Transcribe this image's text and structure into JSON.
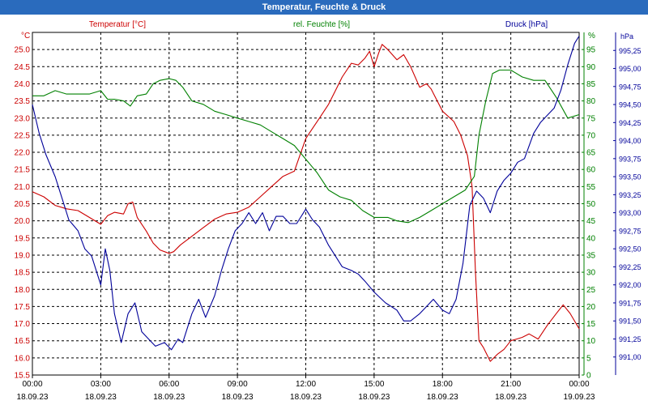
{
  "window": {
    "title": "Temperatur, Feuchte & Druck"
  },
  "chart_data": {
    "type": "line",
    "title": "Temperatur, Feuchte & Druck",
    "grid": true,
    "x_ticks": [
      {
        "time": "00:00",
        "date": "18.09.23"
      },
      {
        "time": "03:00",
        "date": "18.09.23"
      },
      {
        "time": "06:00",
        "date": "18.09.23"
      },
      {
        "time": "09:00",
        "date": "18.09.23"
      },
      {
        "time": "12:00",
        "date": "18.09.23"
      },
      {
        "time": "15:00",
        "date": "18.09.23"
      },
      {
        "time": "18:00",
        "date": "18.09.23"
      },
      {
        "time": "21:00",
        "date": "18.09.23"
      },
      {
        "time": "00:00",
        "date": "19.09.23"
      }
    ],
    "x_range_hours": [
      0,
      24
    ],
    "axes": {
      "temperature": {
        "unit_label": "°C",
        "range": [
          15.5,
          25.5
        ],
        "color": "#cc0000",
        "ticks": [
          "15.5",
          "16.0",
          "16.5",
          "17.0",
          "17.5",
          "18.0",
          "18.5",
          "19.0",
          "19.5",
          "20.0",
          "20.5",
          "21.0",
          "21.5",
          "22.0",
          "22.5",
          "23.0",
          "23.5",
          "24.0",
          "24.5",
          "25.0"
        ]
      },
      "humidity": {
        "unit_label": "%",
        "range": [
          0,
          100
        ],
        "color": "#008000",
        "ticks": [
          "0",
          "5",
          "10",
          "15",
          "20",
          "25",
          "30",
          "35",
          "40",
          "45",
          "50",
          "55",
          "60",
          "65",
          "70",
          "75",
          "80",
          "85",
          "90",
          "95"
        ]
      },
      "pressure": {
        "unit_label": "hPa",
        "range": [
          990.75,
          995.5
        ],
        "color": "#000099",
        "ticks": [
          "991,00",
          "991,25",
          "991,50",
          "991,75",
          "992,00",
          "992,25",
          "992,50",
          "992,75",
          "993,00",
          "993,25",
          "993,50",
          "993,75",
          "994,00",
          "994,25",
          "994,50",
          "994,75",
          "995,00",
          "995,25"
        ]
      }
    },
    "series": [
      {
        "name": "Temperatur [°C]",
        "axis": "temperature",
        "color": "#cc0000",
        "data": [
          [
            0,
            20.85
          ],
          [
            0.5,
            20.7
          ],
          [
            1,
            20.45
          ],
          [
            1.5,
            20.35
          ],
          [
            2,
            20.3
          ],
          [
            2.5,
            20.1
          ],
          [
            3,
            19.9
          ],
          [
            3.3,
            20.15
          ],
          [
            3.6,
            20.25
          ],
          [
            4,
            20.2
          ],
          [
            4.2,
            20.5
          ],
          [
            4.4,
            20.55
          ],
          [
            4.6,
            20.1
          ],
          [
            5,
            19.7
          ],
          [
            5.3,
            19.35
          ],
          [
            5.6,
            19.15
          ],
          [
            6,
            19.05
          ],
          [
            6.2,
            19.1
          ],
          [
            6.5,
            19.3
          ],
          [
            7,
            19.55
          ],
          [
            7.5,
            19.8
          ],
          [
            8,
            20.05
          ],
          [
            8.5,
            20.2
          ],
          [
            9,
            20.25
          ],
          [
            9.5,
            20.4
          ],
          [
            10,
            20.7
          ],
          [
            10.5,
            21.0
          ],
          [
            11,
            21.3
          ],
          [
            11.5,
            21.45
          ],
          [
            12,
            22.4
          ],
          [
            12.3,
            22.7
          ],
          [
            12.6,
            23.0
          ],
          [
            13,
            23.4
          ],
          [
            13.3,
            23.8
          ],
          [
            13.6,
            24.2
          ],
          [
            14,
            24.6
          ],
          [
            14.3,
            24.55
          ],
          [
            14.6,
            24.75
          ],
          [
            14.8,
            24.95
          ],
          [
            15,
            24.5
          ],
          [
            15.2,
            24.9
          ],
          [
            15.35,
            25.15
          ],
          [
            15.6,
            25.0
          ],
          [
            16,
            24.7
          ],
          [
            16.3,
            24.85
          ],
          [
            16.6,
            24.5
          ],
          [
            17,
            23.9
          ],
          [
            17.3,
            24.0
          ],
          [
            17.5,
            23.85
          ],
          [
            18,
            23.2
          ],
          [
            18.5,
            22.9
          ],
          [
            18.8,
            22.5
          ],
          [
            19.1,
            21.9
          ],
          [
            19.3,
            21.0
          ],
          [
            19.45,
            18.5
          ],
          [
            19.6,
            16.5
          ],
          [
            19.8,
            16.3
          ],
          [
            20.1,
            15.9
          ],
          [
            20.4,
            16.1
          ],
          [
            20.7,
            16.25
          ],
          [
            21,
            16.5
          ],
          [
            21.5,
            16.6
          ],
          [
            21.8,
            16.7
          ],
          [
            22.2,
            16.55
          ],
          [
            22.6,
            16.95
          ],
          [
            23,
            17.3
          ],
          [
            23.3,
            17.55
          ],
          [
            23.6,
            17.3
          ],
          [
            24,
            16.85
          ]
        ]
      },
      {
        "name": "rel. Feuchte [%]",
        "axis": "humidity",
        "color": "#008000",
        "data": [
          [
            0,
            81.5
          ],
          [
            0.5,
            81.5
          ],
          [
            1,
            83
          ],
          [
            1.5,
            82
          ],
          [
            2,
            82
          ],
          [
            2.5,
            82
          ],
          [
            3,
            83
          ],
          [
            3.3,
            80.5
          ],
          [
            3.6,
            80.5
          ],
          [
            4,
            80
          ],
          [
            4.3,
            78.5
          ],
          [
            4.6,
            81.5
          ],
          [
            5,
            82
          ],
          [
            5.3,
            85
          ],
          [
            5.6,
            86
          ],
          [
            6,
            86.5
          ],
          [
            6.3,
            86
          ],
          [
            6.6,
            84
          ],
          [
            7,
            80
          ],
          [
            7.5,
            79
          ],
          [
            8,
            77
          ],
          [
            8.5,
            76
          ],
          [
            9,
            75
          ],
          [
            9.5,
            74
          ],
          [
            10,
            73
          ],
          [
            10.5,
            71
          ],
          [
            11,
            69
          ],
          [
            11.5,
            67
          ],
          [
            12,
            63
          ],
          [
            12.5,
            59
          ],
          [
            13,
            54
          ],
          [
            13.5,
            52
          ],
          [
            14,
            51
          ],
          [
            14.5,
            48
          ],
          [
            15,
            46
          ],
          [
            15.3,
            46
          ],
          [
            15.6,
            46
          ],
          [
            16,
            45
          ],
          [
            16.5,
            44.5
          ],
          [
            17,
            46
          ],
          [
            17.5,
            48
          ],
          [
            18,
            50
          ],
          [
            18.5,
            52
          ],
          [
            19,
            54
          ],
          [
            19.4,
            58
          ],
          [
            19.6,
            70
          ],
          [
            19.9,
            80
          ],
          [
            20.2,
            88
          ],
          [
            20.5,
            89
          ],
          [
            21,
            89
          ],
          [
            21.5,
            87
          ],
          [
            22,
            86
          ],
          [
            22.5,
            86
          ],
          [
            23,
            81
          ],
          [
            23.5,
            75
          ],
          [
            24,
            76
          ]
        ]
      },
      {
        "name": "Druck [hPa]",
        "axis": "pressure",
        "color": "#000099",
        "data": [
          [
            0,
            994.5
          ],
          [
            0.3,
            994.1
          ],
          [
            0.6,
            993.8
          ],
          [
            1,
            993.5
          ],
          [
            1.3,
            993.2
          ],
          [
            1.6,
            992.9
          ],
          [
            2,
            992.75
          ],
          [
            2.3,
            992.5
          ],
          [
            2.6,
            992.4
          ],
          [
            3,
            992.0
          ],
          [
            3.2,
            992.5
          ],
          [
            3.4,
            992.2
          ],
          [
            3.6,
            991.6
          ],
          [
            3.9,
            991.2
          ],
          [
            4.2,
            991.6
          ],
          [
            4.5,
            991.75
          ],
          [
            4.8,
            991.35
          ],
          [
            5.1,
            991.25
          ],
          [
            5.4,
            991.15
          ],
          [
            5.8,
            991.2
          ],
          [
            6.1,
            991.1
          ],
          [
            6.4,
            991.25
          ],
          [
            6.6,
            991.2
          ],
          [
            7,
            991.6
          ],
          [
            7.3,
            991.8
          ],
          [
            7.6,
            991.55
          ],
          [
            8,
            991.85
          ],
          [
            8.3,
            992.2
          ],
          [
            8.6,
            992.5
          ],
          [
            8.9,
            992.75
          ],
          [
            9.2,
            992.85
          ],
          [
            9.5,
            993.0
          ],
          [
            9.8,
            992.85
          ],
          [
            10.1,
            993.0
          ],
          [
            10.4,
            992.75
          ],
          [
            10.7,
            992.95
          ],
          [
            11,
            992.95
          ],
          [
            11.3,
            992.85
          ],
          [
            11.6,
            992.85
          ],
          [
            12,
            993.05
          ],
          [
            12.3,
            992.9
          ],
          [
            12.6,
            992.8
          ],
          [
            13,
            992.55
          ],
          [
            13.3,
            992.4
          ],
          [
            13.6,
            992.25
          ],
          [
            14,
            992.2
          ],
          [
            14.3,
            992.15
          ],
          [
            14.6,
            992.05
          ],
          [
            15,
            991.9
          ],
          [
            15.5,
            991.75
          ],
          [
            16,
            991.65
          ],
          [
            16.3,
            991.5
          ],
          [
            16.6,
            991.5
          ],
          [
            17,
            991.6
          ],
          [
            17.3,
            991.7
          ],
          [
            17.6,
            991.8
          ],
          [
            18,
            991.65
          ],
          [
            18.3,
            991.6
          ],
          [
            18.6,
            991.8
          ],
          [
            18.9,
            992.3
          ],
          [
            19.2,
            993.1
          ],
          [
            19.5,
            993.3
          ],
          [
            19.8,
            993.2
          ],
          [
            20.1,
            993.0
          ],
          [
            20.4,
            993.3
          ],
          [
            20.7,
            993.45
          ],
          [
            21,
            993.55
          ],
          [
            21.3,
            993.7
          ],
          [
            21.6,
            993.75
          ],
          [
            22,
            994.1
          ],
          [
            22.3,
            994.25
          ],
          [
            22.6,
            994.35
          ],
          [
            22.9,
            994.45
          ],
          [
            23.2,
            994.7
          ],
          [
            23.5,
            995.05
          ],
          [
            23.8,
            995.35
          ],
          [
            24,
            995.45
          ]
        ]
      }
    ]
  }
}
